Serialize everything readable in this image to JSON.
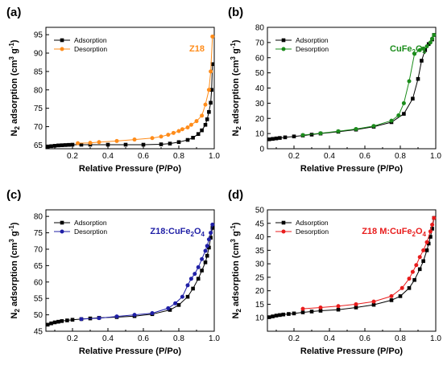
{
  "figure": {
    "x_axis_label": "Relative Pressure (P/Po)",
    "y_axis_label": "N2 adsorption (cm³ g⁻¹)",
    "legend": {
      "adsorption": "Adsorption",
      "desorption": "Desorption"
    }
  },
  "chart_data": [
    {
      "type": "line",
      "panel": "(a)",
      "sample": "Z18",
      "colors": {
        "adsorption": "#000000",
        "desorption": "#ff8c1a",
        "sample_label": "#ff8c1a"
      },
      "xlim": [
        0.05,
        1.0
      ],
      "ylim": [
        64,
        97
      ],
      "xticks": [
        0.2,
        0.4,
        0.6,
        0.8,
        1.0
      ],
      "xtick_labels": [
        "0.2",
        "0.4",
        "0.6",
        "0.8",
        "1.0"
      ],
      "yticks": [
        65,
        70,
        75,
        80,
        85,
        90,
        95
      ],
      "ytick_labels": [
        "65",
        "70",
        "75",
        "80",
        "85",
        "90",
        "95"
      ],
      "xlabel": "Relative Pressure (P/Po)",
      "ylabel": "N2 adsorption (cm³ g⁻¹)",
      "series": [
        {
          "name": "Adsorption",
          "marker": "square",
          "x": [
            0.06,
            0.08,
            0.1,
            0.12,
            0.14,
            0.16,
            0.18,
            0.2,
            0.25,
            0.3,
            0.4,
            0.5,
            0.6,
            0.7,
            0.75,
            0.8,
            0.85,
            0.88,
            0.91,
            0.93,
            0.95,
            0.96,
            0.97,
            0.98,
            0.985,
            0.99
          ],
          "y": [
            64.6,
            64.7,
            64.8,
            64.9,
            64.95,
            65.0,
            65.05,
            65.1,
            65.1,
            65.1,
            65.1,
            65.1,
            65.1,
            65.2,
            65.4,
            65.8,
            66.4,
            67.0,
            68.0,
            69.0,
            70.5,
            72.0,
            74.0,
            76.5,
            80.0,
            87.0
          ]
        },
        {
          "name": "Desorption",
          "marker": "circle",
          "x": [
            0.99,
            0.98,
            0.97,
            0.95,
            0.93,
            0.9,
            0.87,
            0.85,
            0.82,
            0.8,
            0.77,
            0.74,
            0.7,
            0.65,
            0.55,
            0.45,
            0.35,
            0.3,
            0.23
          ],
          "y": [
            94.5,
            85.0,
            80.0,
            76.0,
            73.0,
            71.5,
            70.5,
            69.8,
            69.3,
            68.8,
            68.3,
            67.8,
            67.3,
            66.9,
            66.5,
            66.1,
            65.8,
            65.6,
            65.5
          ]
        }
      ]
    },
    {
      "type": "line",
      "panel": "(b)",
      "sample": "CuFe",
      "sample_sub": "2",
      "sample_end": "O",
      "sample_sub2": "4",
      "colors": {
        "adsorption": "#000000",
        "desorption": "#1b8c1b",
        "sample_label": "#1b8c1b"
      },
      "xlim": [
        0.05,
        1.0
      ],
      "ylim": [
        0,
        80
      ],
      "xticks": [
        0.2,
        0.4,
        0.6,
        0.8,
        1.0
      ],
      "xtick_labels": [
        "0.2",
        "0.4",
        "0.6",
        "0.8",
        "1.0"
      ],
      "yticks": [
        0,
        10,
        20,
        30,
        40,
        50,
        60,
        70,
        80
      ],
      "ytick_labels": [
        "0",
        "10",
        "20",
        "30",
        "40",
        "50",
        "60",
        "70",
        "80"
      ],
      "xlabel": "Relative Pressure (P/Po)",
      "ylabel": "N2 adsorption (cm³ g⁻¹)",
      "series": [
        {
          "name": "Adsorption",
          "marker": "square",
          "x": [
            0.06,
            0.08,
            0.1,
            0.12,
            0.15,
            0.2,
            0.25,
            0.3,
            0.35,
            0.45,
            0.55,
            0.65,
            0.75,
            0.82,
            0.87,
            0.9,
            0.92,
            0.94,
            0.96,
            0.98,
            0.99
          ],
          "y": [
            6.2,
            6.5,
            6.8,
            7.1,
            7.5,
            8.1,
            8.7,
            9.3,
            10.0,
            11.2,
            12.6,
            14.5,
            17.5,
            23.0,
            33.0,
            46.0,
            58.0,
            65.0,
            69.0,
            72.0,
            75.0
          ]
        },
        {
          "name": "Desorption",
          "marker": "circle",
          "x": [
            0.99,
            0.98,
            0.97,
            0.95,
            0.93,
            0.91,
            0.88,
            0.85,
            0.82,
            0.79,
            0.75,
            0.65,
            0.55,
            0.45,
            0.35,
            0.25
          ],
          "y": [
            75.0,
            72.5,
            70.0,
            67.5,
            66.0,
            65.0,
            62.5,
            44.5,
            30.0,
            22.0,
            18.5,
            15.0,
            13.0,
            11.5,
            10.2,
            9.0
          ]
        }
      ]
    },
    {
      "type": "line",
      "panel": "(c)",
      "sample": "Z18:CuFe",
      "sample_sub": "2",
      "sample_end": "O",
      "sample_sub2": "4",
      "colors": {
        "adsorption": "#000000",
        "desorption": "#1f1fa6",
        "sample_label": "#1f1fa6"
      },
      "xlim": [
        0.05,
        1.0
      ],
      "ylim": [
        45,
        82
      ],
      "xticks": [
        0.2,
        0.4,
        0.6,
        0.8,
        1.0
      ],
      "xtick_labels": [
        "0.2",
        "0.4",
        "0.6",
        "0.8",
        "1.0"
      ],
      "yticks": [
        45,
        50,
        55,
        60,
        65,
        70,
        75,
        80
      ],
      "ytick_labels": [
        "45",
        "50",
        "55",
        "60",
        "65",
        "70",
        "75",
        "80"
      ],
      "xlabel": "Relative Pressure (P/Po)",
      "ylabel": "N2 adsorption (cm³ g⁻¹)",
      "series": [
        {
          "name": "Adsorption",
          "marker": "square",
          "x": [
            0.06,
            0.08,
            0.1,
            0.12,
            0.14,
            0.17,
            0.2,
            0.25,
            0.3,
            0.35,
            0.45,
            0.55,
            0.65,
            0.75,
            0.8,
            0.85,
            0.88,
            0.91,
            0.93,
            0.95,
            0.96,
            0.97,
            0.98,
            0.99
          ],
          "y": [
            47.0,
            47.4,
            47.7,
            47.9,
            48.1,
            48.3,
            48.5,
            48.7,
            48.9,
            49.1,
            49.3,
            49.6,
            50.2,
            51.5,
            53.0,
            55.5,
            58.0,
            61.0,
            63.5,
            66.0,
            68.0,
            70.5,
            73.5,
            76.5
          ]
        },
        {
          "name": "Desorption",
          "marker": "circle",
          "x": [
            0.99,
            0.98,
            0.97,
            0.96,
            0.95,
            0.93,
            0.91,
            0.89,
            0.87,
            0.85,
            0.82,
            0.78,
            0.74,
            0.65,
            0.55,
            0.45,
            0.35,
            0.25
          ],
          "y": [
            77.5,
            75.0,
            73.0,
            71.0,
            69.5,
            67.0,
            64.5,
            62.5,
            61.0,
            59.0,
            55.5,
            53.5,
            52.0,
            50.5,
            50.0,
            49.5,
            49.0,
            48.7
          ]
        }
      ]
    },
    {
      "type": "line",
      "panel": "(d)",
      "sample": "Z18 M:CuFe",
      "sample_sub": "2",
      "sample_end": "O",
      "sample_sub2": "4",
      "colors": {
        "adsorption": "#000000",
        "desorption": "#e81c1c",
        "sample_label": "#e81c1c"
      },
      "xlim": [
        0.05,
        1.0
      ],
      "ylim": [
        5,
        50
      ],
      "xticks": [
        0.2,
        0.4,
        0.6,
        0.8,
        1.0
      ],
      "xtick_labels": [
        "0.2",
        "0.4",
        "0.6",
        "0.8",
        "1.0"
      ],
      "yticks": [
        10,
        15,
        20,
        25,
        30,
        35,
        40,
        45,
        50
      ],
      "ytick_labels": [
        "10",
        "15",
        "20",
        "25",
        "30",
        "35",
        "40",
        "45",
        "50"
      ],
      "xlabel": "Relative Pressure (P/Po)",
      "ylabel": "N2 adsorption (cm³ g⁻¹)",
      "series": [
        {
          "name": "Adsorption",
          "marker": "square",
          "x": [
            0.06,
            0.08,
            0.1,
            0.12,
            0.14,
            0.17,
            0.2,
            0.25,
            0.3,
            0.35,
            0.45,
            0.55,
            0.65,
            0.75,
            0.8,
            0.85,
            0.88,
            0.91,
            0.93,
            0.95,
            0.96,
            0.97,
            0.98,
            0.99
          ],
          "y": [
            10.2,
            10.5,
            10.8,
            11.0,
            11.2,
            11.4,
            11.6,
            12.0,
            12.3,
            12.6,
            13.0,
            13.8,
            14.8,
            16.5,
            18.0,
            21.0,
            24.0,
            28.0,
            31.0,
            35.0,
            37.5,
            40.0,
            43.0,
            47.0
          ]
        },
        {
          "name": "Desorption",
          "marker": "circle",
          "x": [
            0.99,
            0.98,
            0.97,
            0.95,
            0.93,
            0.91,
            0.89,
            0.87,
            0.85,
            0.81,
            0.75,
            0.65,
            0.55,
            0.45,
            0.35,
            0.25
          ],
          "y": [
            47.0,
            44.5,
            42.0,
            38.0,
            35.0,
            32.5,
            29.5,
            27.0,
            24.5,
            21.0,
            18.0,
            16.0,
            15.0,
            14.3,
            13.8,
            13.3
          ]
        }
      ]
    }
  ]
}
